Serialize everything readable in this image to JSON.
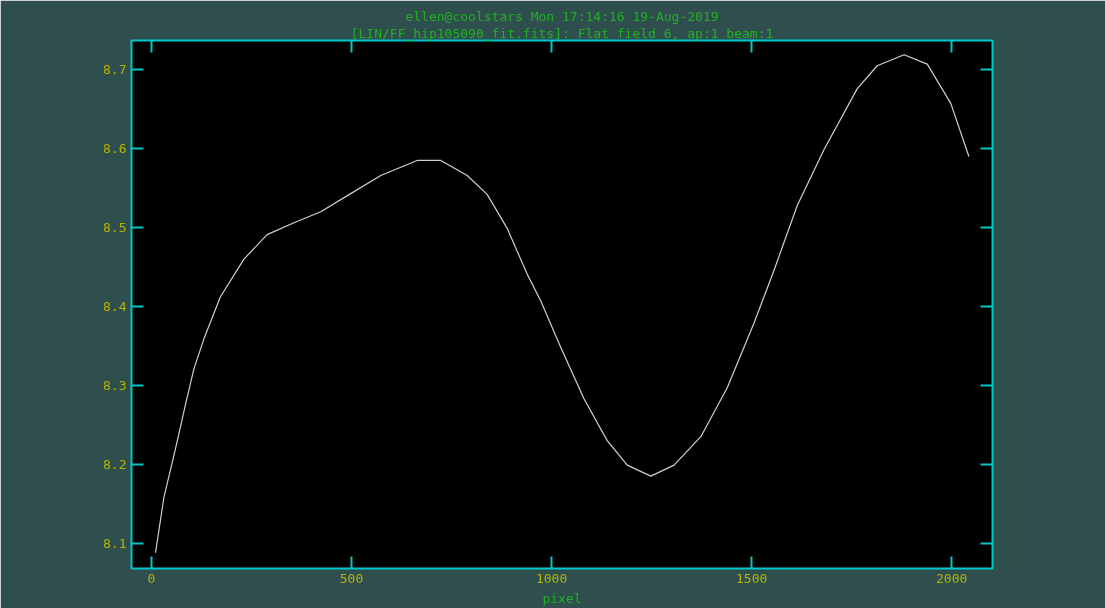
{
  "chart_data": {
    "type": "line",
    "title": "ellen@coolstars Mon 17:14:16 19-Aug-2019",
    "subtitle": "[LIN/FF_hip105090_fit.fits]: Flat field 6, ap:1 beam:1",
    "xlabel": "pixel",
    "x": [
      10,
      31,
      60,
      85,
      106,
      131,
      172,
      231,
      289,
      356,
      423,
      498,
      573,
      664,
      723,
      789,
      839,
      889,
      939,
      973,
      1023,
      1081,
      1139,
      1189,
      1248,
      1306,
      1373,
      1439,
      1506,
      1556,
      1614,
      1681,
      1764,
      1814,
      1881,
      1939,
      1998,
      2043
    ],
    "series": [
      {
        "color": "#d0d0d0",
        "values": [
          8.088,
          8.158,
          8.22,
          8.276,
          8.321,
          8.359,
          8.412,
          8.46,
          8.491,
          8.506,
          8.52,
          8.543,
          8.566,
          8.585,
          8.585,
          8.566,
          8.542,
          8.499,
          8.441,
          8.407,
          8.348,
          8.283,
          8.23,
          8.199,
          8.185,
          8.199,
          8.235,
          8.297,
          8.379,
          8.446,
          8.528,
          8.599,
          8.676,
          8.705,
          8.719,
          8.707,
          8.657,
          8.59
        ]
      }
    ],
    "xlim": [
      -50,
      2102
    ],
    "ylim": [
      8.068,
      8.737
    ],
    "xticks": [
      0,
      500,
      1000,
      1500,
      2000
    ],
    "yticks": [
      8.1,
      8.2,
      8.3,
      8.4,
      8.5,
      8.6,
      8.7
    ],
    "grid": false,
    "marker": "none",
    "line_style": "solid"
  }
}
